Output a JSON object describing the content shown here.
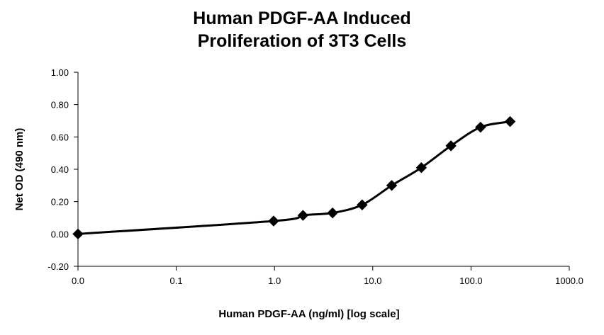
{
  "chart_data": {
    "type": "line",
    "title_lines": [
      "Human PDGF-AA Induced",
      "Proliferation of 3T3 Cells"
    ],
    "xlabel": "Human PDGF-AA (ng/ml) [log scale]",
    "ylabel": "Net OD (490 nm)",
    "x_scale": "log",
    "xlim": [
      0.01,
      1000
    ],
    "ylim": [
      -0.2,
      1.0
    ],
    "grid": false,
    "legend": "none",
    "x_ticks": [
      0.01,
      0.1,
      1,
      10,
      100,
      1000
    ],
    "x_tick_labels": [
      "0.0",
      "0.1",
      "1.0",
      "10.0",
      "100.0",
      "1000.0"
    ],
    "y_ticks": [
      -0.2,
      0,
      0.2,
      0.4,
      0.6,
      0.8,
      1.0
    ],
    "y_tick_labels": [
      "-0.20",
      "0.00",
      "0.20",
      "0.40",
      "0.60",
      "0.80",
      "1.00"
    ],
    "series": [
      {
        "x": [
          0.01,
          0.98,
          1.95,
          3.9,
          7.8,
          15.6,
          31.25,
          62.5,
          125,
          250
        ],
        "y": [
          0.0,
          0.08,
          0.115,
          0.13,
          0.18,
          0.3,
          0.41,
          0.545,
          0.66,
          0.695
        ]
      }
    ],
    "line_color": "#000000",
    "marker": "diamond"
  }
}
